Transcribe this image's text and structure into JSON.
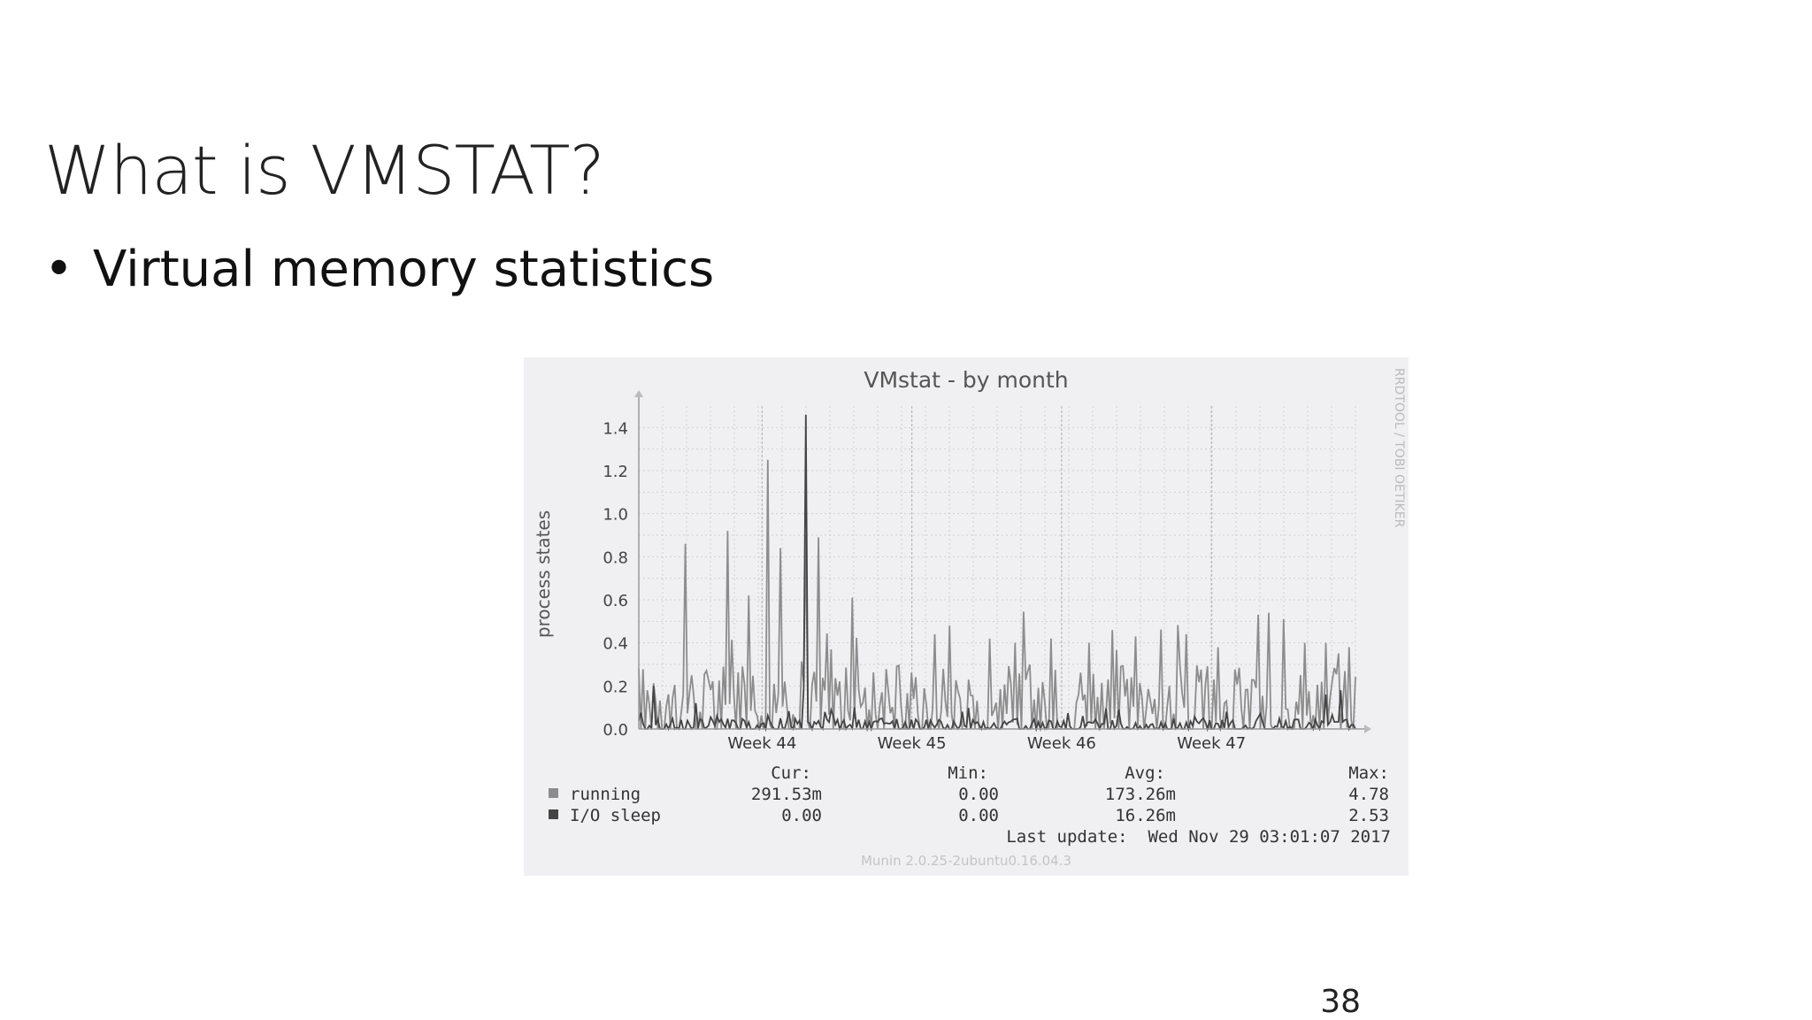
{
  "slide": {
    "title": "What is VMSTAT?",
    "bullet": "Virtual memory statistics",
    "page_number": "38"
  },
  "chart_data": {
    "type": "line",
    "title": "VMstat - by month",
    "ylabel": "process states",
    "xlabel": "",
    "ylim": [
      0,
      1.5
    ],
    "yticks": [
      "0.0",
      "0.2",
      "0.4",
      "0.6",
      "0.8",
      "1.0",
      "1.2",
      "1.4"
    ],
    "ytick_values": [
      0,
      0.2,
      0.4,
      0.6,
      0.8,
      1.0,
      1.2,
      1.4
    ],
    "xticks": [
      {
        "label": "Week 44",
        "pos": 0.172
      },
      {
        "label": "Week 45",
        "pos": 0.381
      },
      {
        "label": "Week 46",
        "pos": 0.59
      },
      {
        "label": "Week 47",
        "pos": 0.799
      }
    ],
    "grid": true,
    "watermark": "RRDTOOL / TOBI OETIKER",
    "series": [
      {
        "name": "running",
        "color": "#8c8c8c",
        "peaks": [
          [
            0.064,
            0.86
          ],
          [
            0.125,
            0.92
          ],
          [
            0.153,
            0.62
          ],
          [
            0.18,
            1.25
          ],
          [
            0.198,
            0.84
          ],
          [
            0.232,
            0.9
          ],
          [
            0.25,
            0.89
          ],
          [
            0.298,
            0.61
          ],
          [
            0.413,
            0.44
          ],
          [
            0.433,
            0.48
          ],
          [
            0.524,
            0.4
          ],
          [
            0.576,
            0.42
          ],
          [
            0.628,
            0.4
          ],
          [
            0.66,
            0.46
          ],
          [
            0.692,
            0.43
          ],
          [
            0.764,
            0.44
          ],
          [
            0.808,
            0.38
          ],
          [
            0.88,
            0.54
          ],
          [
            0.9,
            0.51
          ],
          [
            0.93,
            0.4
          ],
          [
            0.96,
            0.4
          ],
          [
            0.99,
            0.38
          ]
        ]
      },
      {
        "name": "I/O sleep",
        "color": "#444444",
        "peaks": [
          [
            0.232,
            1.46
          ],
          [
            0.02,
            0.2
          ],
          [
            0.08,
            0.12
          ],
          [
            0.3,
            0.1
          ],
          [
            0.45,
            0.08
          ],
          [
            0.62,
            0.06
          ],
          [
            0.82,
            0.08
          ],
          [
            0.96,
            0.16
          ],
          [
            0.98,
            0.18
          ]
        ]
      }
    ],
    "legend": {
      "placement": "bottom-left",
      "headers": [
        "Cur:",
        "Min:",
        "Avg:",
        "Max:"
      ],
      "rows": [
        {
          "name": "running",
          "color": "#8c8c8c",
          "cur": "291.53m",
          "min": "0.00",
          "avg": "173.26m",
          "max": "4.78"
        },
        {
          "name": "I/O sleep",
          "color": "#444444",
          "cur": "0.00",
          "min": "0.00",
          "avg": "16.26m",
          "max": "2.53"
        }
      ]
    },
    "last_update": "Last update:  Wed Nov 29 03:01:07 2017",
    "footer": "Munin 2.0.25-2ubuntu0.16.04.3"
  }
}
